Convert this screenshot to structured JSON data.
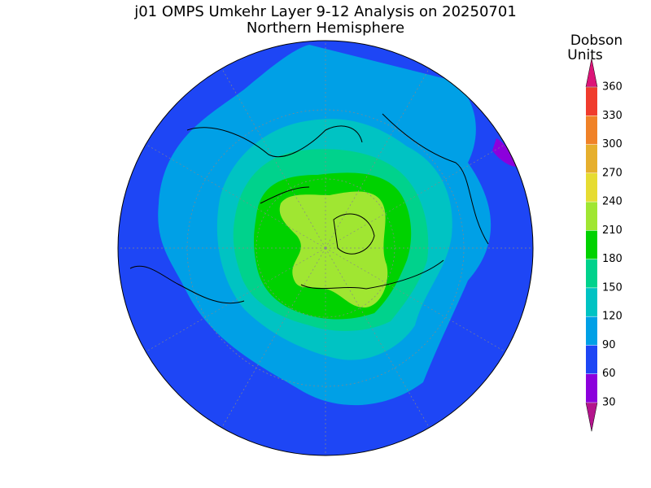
{
  "title": "j01 OMPS Umkehr Layer 9-12 Analysis on 20250701",
  "subtitle": "Northern Hemisphere",
  "colorbar": {
    "label": [
      "Dobson",
      "Units"
    ],
    "ticks": [
      30,
      60,
      90,
      120,
      150,
      180,
      210,
      240,
      270,
      300,
      330,
      360
    ],
    "colors": [
      "#b4148c",
      "#8c00dc",
      "#1e46f5",
      "#00a0e6",
      "#00c3c3",
      "#00d28c",
      "#00d200",
      "#a0e632",
      "#e6dc32",
      "#e6af2d",
      "#f08228",
      "#f03c2d",
      "#dc1478"
    ]
  }
}
